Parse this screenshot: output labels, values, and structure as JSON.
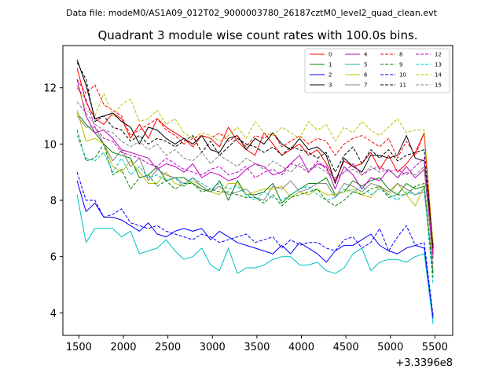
{
  "chart_data": {
    "type": "line",
    "suptitle": "Data file: modeM0/AS1A09_012T02_9000003780_26187cztM0_level2_quad_clean.evt",
    "title": "Quadrant 3 module wise count rates with 100.0s bins.",
    "xlabel": "",
    "ylabel": "",
    "x_offset_label": "+3.3396e8",
    "xlim": [
      1320,
      5700
    ],
    "ylim": [
      3.2,
      13.5
    ],
    "xticks": [
      1500,
      2000,
      2500,
      3000,
      3500,
      4000,
      4500,
      5000,
      5500
    ],
    "yticks": [
      4,
      6,
      8,
      10,
      12
    ],
    "legend_position": "top-right",
    "x": [
      1480,
      1580,
      1680,
      1780,
      1880,
      1980,
      2080,
      2180,
      2280,
      2380,
      2480,
      2580,
      2680,
      2780,
      2880,
      2980,
      3080,
      3180,
      3280,
      3380,
      3480,
      3580,
      3680,
      3780,
      3880,
      3980,
      4080,
      4180,
      4280,
      4380,
      4480,
      4580,
      4680,
      4780,
      4880,
      4980,
      5080,
      5180,
      5280,
      5380,
      5480
    ],
    "series": [
      {
        "name": "0",
        "color": "#ff0000",
        "style": "solid",
        "values": [
          12.7,
          11.5,
          10.9,
          10.7,
          11.1,
          10.9,
          10.2,
          10.7,
          10.2,
          10.9,
          10.6,
          10.4,
          10.2,
          9.9,
          10.3,
          10.2,
          9.9,
          10.6,
          10.1,
          9.8,
          9.6,
          10.4,
          10.0,
          9.6,
          9.8,
          10.0,
          9.6,
          9.8,
          9.3,
          8.7,
          9.4,
          9.2,
          9.3,
          9.7,
          9.1,
          9.6,
          9.0,
          9.3,
          9.7,
          10.4,
          6.2
        ]
      },
      {
        "name": "1",
        "color": "#008000",
        "style": "solid",
        "values": [
          11.1,
          10.7,
          10.4,
          10.0,
          9.7,
          9.6,
          9.5,
          8.8,
          8.9,
          9.2,
          8.7,
          8.8,
          8.8,
          8.6,
          8.4,
          8.3,
          8.7,
          8.0,
          8.7,
          8.2,
          8.2,
          8.3,
          8.6,
          7.9,
          8.2,
          8.4,
          8.6,
          8.6,
          8.8,
          8.2,
          8.3,
          8.7,
          8.5,
          8.7,
          8.8,
          8.4,
          8.2,
          8.6,
          8.4,
          8.5,
          5.4
        ]
      },
      {
        "name": "2",
        "color": "#0000ff",
        "style": "solid",
        "values": [
          8.7,
          7.6,
          7.9,
          7.4,
          7.4,
          7.3,
          7.1,
          6.9,
          7.2,
          6.8,
          6.7,
          6.9,
          7.0,
          6.9,
          7.0,
          6.6,
          6.9,
          6.7,
          6.5,
          6.4,
          6.3,
          6.2,
          6.1,
          6.4,
          6.1,
          6.5,
          6.3,
          6.1,
          5.8,
          6.2,
          6.4,
          6.4,
          6.6,
          6.8,
          6.4,
          6.2,
          6.1,
          6.3,
          6.4,
          6.3,
          3.8
        ]
      },
      {
        "name": "3",
        "color": "#000000",
        "style": "solid",
        "values": [
          13.0,
          12.1,
          10.9,
          11.0,
          11.1,
          10.8,
          10.6,
          10.0,
          10.6,
          10.5,
          10.2,
          10.0,
          10.2,
          10.0,
          10.3,
          9.8,
          9.7,
          10.2,
          10.3,
          9.8,
          10.2,
          10.0,
          10.4,
          10.0,
          9.8,
          10.2,
          9.8,
          9.9,
          9.6,
          8.6,
          9.5,
          9.2,
          9.0,
          9.6,
          9.6,
          9.5,
          9.6,
          10.3,
          9.5,
          9.4,
          6.4
        ]
      },
      {
        "name": "4",
        "color": "#c000c0",
        "style": "solid",
        "values": [
          12.3,
          11.0,
          10.4,
          10.5,
          10.2,
          9.8,
          9.7,
          9.6,
          9.5,
          9.1,
          9.3,
          9.2,
          9.0,
          9.3,
          8.8,
          9.0,
          8.9,
          8.7,
          8.8,
          9.1,
          9.3,
          9.2,
          8.9,
          9.0,
          9.3,
          9.6,
          9.0,
          9.3,
          9.2,
          8.4,
          9.2,
          8.9,
          8.4,
          8.8,
          8.7,
          9.1,
          8.8,
          9.2,
          8.8,
          9.1,
          6.0
        ]
      },
      {
        "name": "5",
        "color": "#00bfbf",
        "style": "solid",
        "values": [
          8.2,
          6.5,
          7.0,
          7.0,
          7.0,
          6.7,
          6.9,
          6.1,
          6.2,
          6.3,
          6.6,
          6.2,
          5.9,
          6.0,
          6.3,
          5.7,
          5.5,
          6.3,
          5.4,
          5.6,
          5.6,
          5.7,
          5.9,
          6.0,
          6.0,
          5.7,
          5.7,
          5.8,
          5.5,
          5.4,
          5.6,
          6.1,
          6.3,
          5.5,
          5.8,
          5.9,
          5.9,
          5.8,
          6.0,
          6.1,
          3.6
        ]
      },
      {
        "name": "6",
        "color": "#bfbf00",
        "style": "solid",
        "values": [
          11.2,
          10.1,
          10.2,
          10.0,
          9.2,
          9.0,
          9.4,
          9.0,
          8.6,
          8.6,
          9.0,
          8.6,
          8.5,
          8.7,
          8.5,
          8.3,
          8.2,
          8.6,
          8.6,
          8.2,
          8.3,
          8.4,
          8.4,
          8.5,
          8.1,
          8.3,
          8.2,
          8.4,
          8.2,
          8.2,
          8.3,
          8.4,
          8.2,
          8.1,
          8.5,
          8.2,
          8.6,
          8.2,
          7.8,
          8.5,
          5.5
        ]
      },
      {
        "name": "7",
        "color": "#808080",
        "style": "solid",
        "values": [
          11.0,
          10.6,
          10.6,
          10.0,
          9.4,
          9.8,
          9.2,
          9.5,
          8.7,
          9.1,
          8.9,
          8.8,
          8.6,
          8.8,
          8.5,
          8.3,
          8.5,
          8.2,
          8.3,
          8.4,
          8.1,
          8.0,
          8.5,
          8.4,
          8.7,
          8.3,
          8.4,
          8.6,
          8.6,
          8.1,
          8.6,
          8.5,
          8.3,
          8.6,
          8.5,
          8.3,
          8.6,
          8.4,
          8.2,
          8.3,
          5.5
        ]
      },
      {
        "name": "8",
        "color": "#ff0000",
        "style": "dashed",
        "values": [
          12.3,
          11.8,
          12.1,
          11.4,
          11.2,
          11.0,
          10.3,
          10.5,
          10.7,
          10.9,
          10.5,
          10.3,
          10.0,
          10.2,
          10.3,
          10.2,
          10.4,
          10.1,
          10.3,
          9.9,
          10.3,
          10.2,
          10.4,
          9.9,
          10.1,
          10.3,
          10.0,
          10.2,
          10.1,
          9.6,
          10.0,
          10.2,
          10.3,
          10.1,
          9.9,
          10.2,
          9.5,
          10.1,
          9.6,
          10.4,
          6.1
        ]
      },
      {
        "name": "9",
        "color": "#008000",
        "style": "dashed",
        "values": [
          10.5,
          9.4,
          9.5,
          10.0,
          8.9,
          9.1,
          8.4,
          8.8,
          8.9,
          8.5,
          8.7,
          8.4,
          8.6,
          8.6,
          8.3,
          8.4,
          8.3,
          8.3,
          8.2,
          8.1,
          8.1,
          7.9,
          8.2,
          7.8,
          8.1,
          8.2,
          8.3,
          8.4,
          8.0,
          7.8,
          8.0,
          8.3,
          8.2,
          8.4,
          8.5,
          8.1,
          8.2,
          8.2,
          8.5,
          8.6,
          5.2
        ]
      },
      {
        "name": "10",
        "color": "#0000ff",
        "style": "dashed",
        "values": [
          9.0,
          8.0,
          8.0,
          7.4,
          7.5,
          7.7,
          7.2,
          7.1,
          7.0,
          7.1,
          6.9,
          6.8,
          6.7,
          6.6,
          6.8,
          6.7,
          6.5,
          6.6,
          6.7,
          6.8,
          6.5,
          6.6,
          6.7,
          6.3,
          6.6,
          6.4,
          6.5,
          6.5,
          6.3,
          6.2,
          6.6,
          6.7,
          6.3,
          6.5,
          7.0,
          6.2,
          6.7,
          7.1,
          6.4,
          6.5,
          3.9
        ]
      },
      {
        "name": "11",
        "color": "#000000",
        "style": "dashed",
        "values": [
          12.9,
          12.3,
          10.8,
          11.0,
          10.6,
          10.5,
          10.1,
          10.3,
          10.0,
          10.2,
          10.1,
          9.9,
          10.1,
          10.3,
          9.7,
          10.1,
          9.6,
          9.9,
          10.2,
          10.0,
          9.9,
          9.7,
          9.9,
          9.6,
          9.9,
          9.8,
          9.7,
          9.5,
          9.7,
          9.0,
          9.6,
          9.9,
          9.3,
          9.8,
          9.5,
          9.8,
          9.4,
          9.6,
          9.7,
          9.8,
          6.3
        ]
      },
      {
        "name": "12",
        "color": "#c000c0",
        "style": "dashed",
        "values": [
          12.0,
          11.6,
          10.6,
          10.2,
          10.1,
          9.7,
          9.6,
          9.5,
          9.3,
          9.2,
          9.5,
          9.3,
          9.1,
          9.0,
          8.9,
          9.1,
          9.2,
          8.9,
          9.0,
          9.2,
          8.8,
          9.0,
          9.1,
          8.9,
          9.3,
          9.2,
          9.0,
          9.4,
          9.1,
          8.7,
          9.0,
          9.3,
          8.9,
          9.1,
          9.2,
          9.0,
          9.1,
          8.9,
          9.2,
          9.5,
          5.9
        ]
      },
      {
        "name": "13",
        "color": "#00bfbf",
        "style": "dashed",
        "values": [
          10.3,
          9.5,
          9.4,
          9.7,
          9.0,
          9.5,
          8.9,
          9.2,
          8.8,
          8.9,
          8.7,
          8.8,
          8.5,
          8.8,
          8.6,
          8.4,
          8.6,
          8.4,
          8.5,
          8.2,
          8.0,
          8.3,
          8.1,
          8.0,
          8.2,
          8.4,
          8.5,
          8.2,
          8.0,
          8.1,
          8.4,
          8.3,
          8.5,
          8.2,
          8.4,
          8.2,
          8.0,
          8.3,
          8.2,
          8.4,
          5.0
        ]
      },
      {
        "name": "14",
        "color": "#bfbf00",
        "style": "dashed",
        "values": [
          12.1,
          11.2,
          11.0,
          11.8,
          11.0,
          11.4,
          11.6,
          10.8,
          10.9,
          11.2,
          10.7,
          10.9,
          10.4,
          10.2,
          10.4,
          10.3,
          10.1,
          10.3,
          10.6,
          10.2,
          10.8,
          10.4,
          10.3,
          10.6,
          10.4,
          10.2,
          10.8,
          10.5,
          10.7,
          10.1,
          10.6,
          10.4,
          10.8,
          10.5,
          10.3,
          10.6,
          10.9,
          10.4,
          10.5,
          10.5,
          6.5
        ]
      },
      {
        "name": "15",
        "color": "#808080",
        "style": "dashed",
        "values": [
          11.5,
          11.1,
          10.7,
          10.5,
          10.4,
          10.1,
          9.9,
          10.1,
          9.8,
          10.0,
          9.6,
          9.8,
          9.5,
          9.4,
          9.7,
          9.3,
          9.6,
          9.4,
          9.2,
          9.5,
          9.3,
          9.1,
          9.4,
          9.2,
          9.0,
          9.3,
          9.1,
          9.2,
          9.0,
          8.8,
          9.0,
          9.1,
          8.9,
          9.2,
          9.0,
          9.1,
          8.8,
          9.0,
          8.9,
          9.2,
          5.7
        ]
      }
    ]
  }
}
